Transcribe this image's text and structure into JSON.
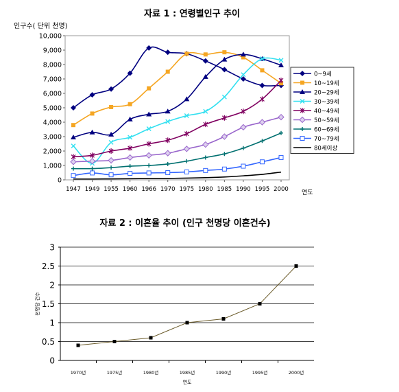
{
  "chart_data": [
    {
      "type": "line",
      "title": "자료 1 : 연령별인구 추이",
      "ylabel": "인구수( 단위 천명)",
      "xlabel": "연도",
      "ylim": [
        0,
        10000
      ],
      "yticks": [
        "0",
        "1,000",
        "2,000",
        "3,000",
        "4,000",
        "5,000",
        "6,000",
        "7,000",
        "8,000",
        "9,000",
        "10,000"
      ],
      "categories": [
        "1947",
        "1949",
        "1955",
        "1960",
        "1966",
        "1970",
        "1975",
        "1980",
        "1985",
        "1990",
        "1995",
        "2000"
      ],
      "grid": false,
      "legend_position": "right",
      "series": [
        {
          "name": "0~9세",
          "color": "#000080",
          "marker": "diamond",
          "values": [
            5000,
            5900,
            6300,
            7400,
            9150,
            8850,
            8750,
            8250,
            7650,
            7000,
            6550,
            6550
          ]
        },
        {
          "name": "10~19세",
          "color": "#f5a623",
          "marker": "square",
          "values": [
            3800,
            4600,
            5050,
            5250,
            6350,
            7500,
            8750,
            8700,
            8850,
            8500,
            7600,
            6700
          ]
        },
        {
          "name": "20~29세",
          "color": "#000080",
          "marker": "triangle",
          "values": [
            2950,
            3300,
            3150,
            4200,
            4550,
            4750,
            5600,
            7150,
            8350,
            8700,
            8400,
            7950
          ]
        },
        {
          "name": "30~39세",
          "color": "#33e0f0",
          "marker": "x",
          "values": [
            2350,
            1150,
            2600,
            2950,
            3550,
            4050,
            4450,
            4750,
            5750,
            7300,
            8400,
            8300
          ]
        },
        {
          "name": "40~49세",
          "color": "#800060",
          "marker": "star",
          "values": [
            1600,
            1700,
            2000,
            2200,
            2500,
            2750,
            3200,
            3850,
            4300,
            4750,
            5600,
            6900
          ]
        },
        {
          "name": "50~59세",
          "color": "#9966cc",
          "marker": "diamond-open",
          "values": [
            1250,
            1300,
            1350,
            1550,
            1700,
            1850,
            2150,
            2450,
            3000,
            3650,
            4000,
            4350
          ]
        },
        {
          "name": "60~69세",
          "color": "#007070",
          "marker": "plus",
          "values": [
            780,
            780,
            850,
            950,
            1000,
            1100,
            1300,
            1550,
            1800,
            2200,
            2700,
            3250
          ]
        },
        {
          "name": "70~79세",
          "color": "#3366ff",
          "marker": "square-open",
          "values": [
            300,
            480,
            350,
            450,
            480,
            500,
            550,
            650,
            750,
            950,
            1250,
            1550
          ]
        },
        {
          "name": "80세이상",
          "color": "#000000",
          "marker": "none",
          "values": [
            60,
            60,
            70,
            80,
            90,
            100,
            120,
            150,
            200,
            280,
            380,
            540
          ]
        }
      ]
    },
    {
      "type": "line",
      "title": "자료 2 : 이혼율 추이 (인구 천명당 이혼건수)",
      "ylabel": "천명당 건수",
      "xlabel": "연도",
      "ylim": [
        0,
        3
      ],
      "yticks": [
        "0",
        "0.5",
        "1",
        "1.5",
        "2",
        "2.5",
        "3"
      ],
      "categories": [
        "1970년",
        "1975년",
        "1980년",
        "1985년",
        "1990년",
        "1995년",
        "2000년"
      ],
      "grid": true,
      "series": [
        {
          "name": "",
          "color": "#6b5b2a",
          "marker": "square",
          "values": [
            0.4,
            0.5,
            0.6,
            1.0,
            1.1,
            1.5,
            2.5
          ]
        }
      ]
    }
  ]
}
